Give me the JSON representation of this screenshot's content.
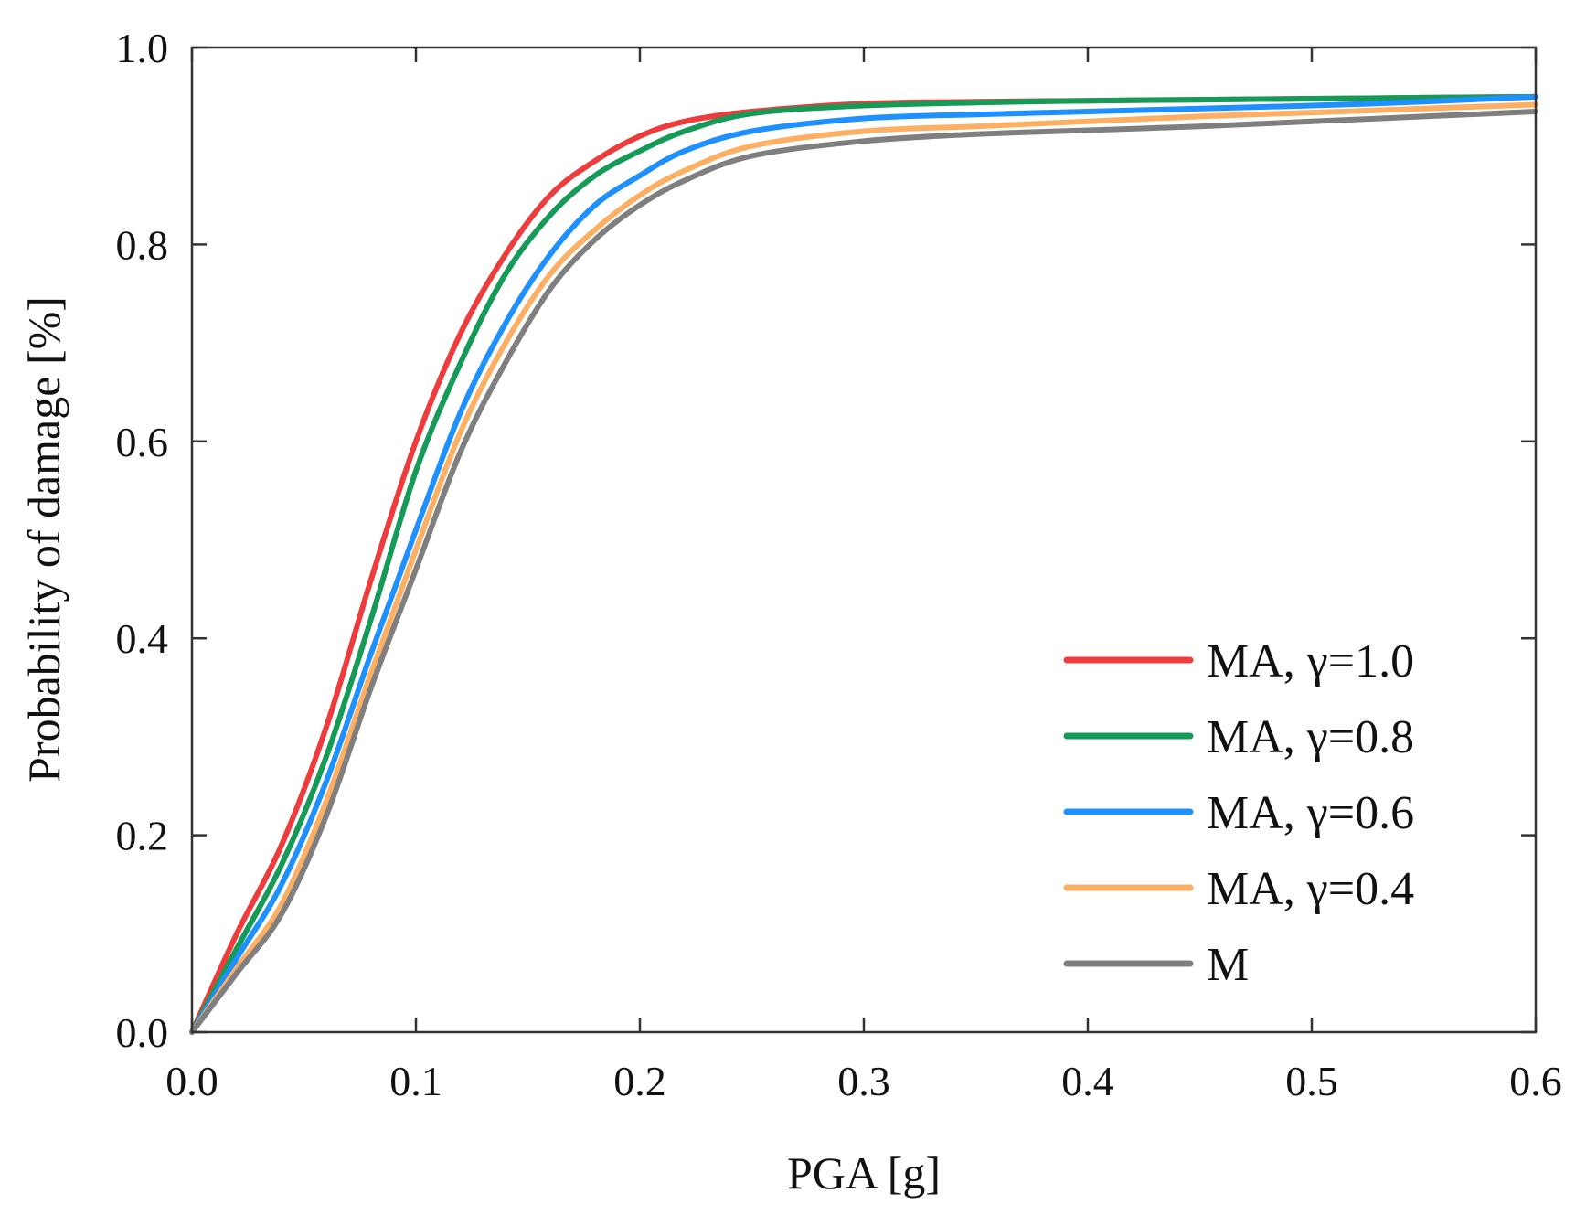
{
  "chart_data": {
    "type": "line",
    "title": "",
    "xlabel": "PGA [g]",
    "ylabel": "Probability of damage [%]",
    "xlim": [
      0.0,
      0.6
    ],
    "ylim": [
      0.0,
      1.0
    ],
    "xticks": [
      "0.0",
      "0.1",
      "0.2",
      "0.3",
      "0.4",
      "0.5",
      "0.6"
    ],
    "yticks": [
      "0.0",
      "0.2",
      "0.4",
      "0.6",
      "0.8",
      "1.0"
    ],
    "grid": false,
    "legend_position": "bottom-right",
    "x": [
      0.0,
      0.02,
      0.04,
      0.06,
      0.08,
      0.1,
      0.12,
      0.14,
      0.16,
      0.18,
      0.2,
      0.22,
      0.25,
      0.3,
      0.35,
      0.4,
      0.45,
      0.5,
      0.55,
      0.6
    ],
    "series": [
      {
        "name": "MA, γ=1.0",
        "color": "#ee3b3b",
        "values": [
          0.0,
          0.1,
          0.19,
          0.31,
          0.46,
          0.6,
          0.71,
          0.79,
          0.85,
          0.885,
          0.91,
          0.925,
          0.935,
          0.943,
          0.945,
          0.946,
          0.947,
          0.948,
          0.949,
          0.95
        ]
      },
      {
        "name": "MA, γ=0.8",
        "color": "#169a57",
        "values": [
          0.0,
          0.085,
          0.17,
          0.28,
          0.42,
          0.57,
          0.68,
          0.77,
          0.83,
          0.87,
          0.895,
          0.915,
          0.933,
          0.941,
          0.944,
          0.946,
          0.947,
          0.948,
          0.949,
          0.95
        ]
      },
      {
        "name": "MA, γ=0.6",
        "color": "#1e90ff",
        "values": [
          0.0,
          0.075,
          0.15,
          0.255,
          0.385,
          0.51,
          0.63,
          0.72,
          0.79,
          0.84,
          0.87,
          0.895,
          0.915,
          0.928,
          0.932,
          0.935,
          0.938,
          0.941,
          0.945,
          0.95
        ]
      },
      {
        "name": "MA, γ=0.4",
        "color": "#fdb064",
        "values": [
          0.0,
          0.065,
          0.13,
          0.235,
          0.365,
          0.49,
          0.61,
          0.7,
          0.77,
          0.815,
          0.85,
          0.875,
          0.9,
          0.915,
          0.92,
          0.925,
          0.93,
          0.934,
          0.938,
          0.942
        ]
      },
      {
        "name": "M",
        "color": "#7f7f7f",
        "values": [
          0.0,
          0.06,
          0.12,
          0.22,
          0.35,
          0.47,
          0.59,
          0.68,
          0.755,
          0.805,
          0.84,
          0.865,
          0.89,
          0.905,
          0.912,
          0.916,
          0.92,
          0.925,
          0.93,
          0.935
        ]
      }
    ]
  }
}
